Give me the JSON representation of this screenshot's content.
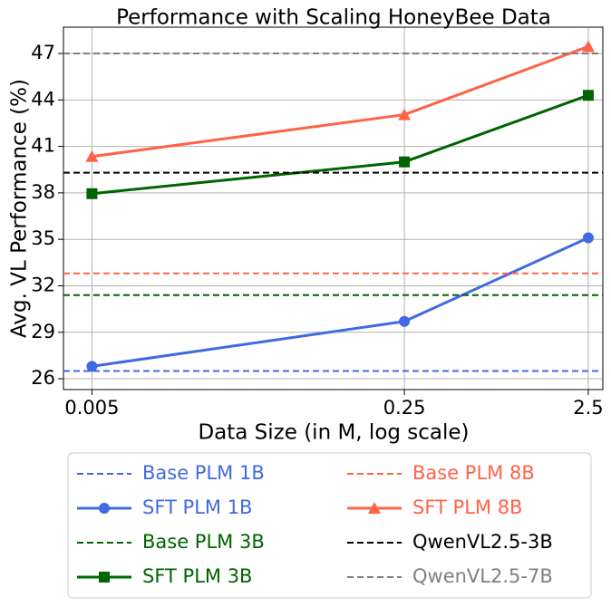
{
  "chart_data": {
    "type": "line",
    "title": "Performance with Scaling HoneyBee Data",
    "x_label": "Data Size (in M, log scale)",
    "y_label": "Avg. VL Performance (%)",
    "x": [
      0.005,
      0.25,
      2.5
    ],
    "xscale": "log",
    "xlim": [
      0.0035,
      3.0
    ],
    "xticks": [
      0.005,
      0.25,
      2.5
    ],
    "ylim": [
      25.3,
      48.7
    ],
    "yticks": [
      26,
      29,
      32,
      35,
      38,
      41,
      44,
      47
    ],
    "grid": true,
    "legend": "bottom",
    "series": [
      {
        "name": "Base PLM 1B",
        "color": "#4169e1",
        "linestyle": "dashed",
        "value": 26.5
      },
      {
        "name": "SFT PLM 1B",
        "color": "#4169e1",
        "marker": "circle",
        "values": [
          26.8,
          29.7,
          35.1
        ]
      },
      {
        "name": "Base PLM 3B",
        "color": "#006400",
        "linestyle": "dashed",
        "value": 31.4
      },
      {
        "name": "SFT PLM 3B",
        "color": "#006400",
        "marker": "square",
        "values": [
          37.95,
          40.0,
          44.3
        ]
      },
      {
        "name": "Base PLM 8B",
        "color": "#ff6347",
        "linestyle": "dashed",
        "value": 32.8
      },
      {
        "name": "SFT PLM 8B",
        "color": "#ff6347",
        "marker": "triangle",
        "values": [
          40.35,
          43.05,
          47.45
        ]
      },
      {
        "name": "QwenVL2.5-3B",
        "color": "#000000",
        "linestyle": "dashed",
        "value": 39.3
      },
      {
        "name": "QwenVL2.5-7B",
        "color": "#808080",
        "linestyle": "dashed",
        "value": 47.0
      }
    ]
  }
}
